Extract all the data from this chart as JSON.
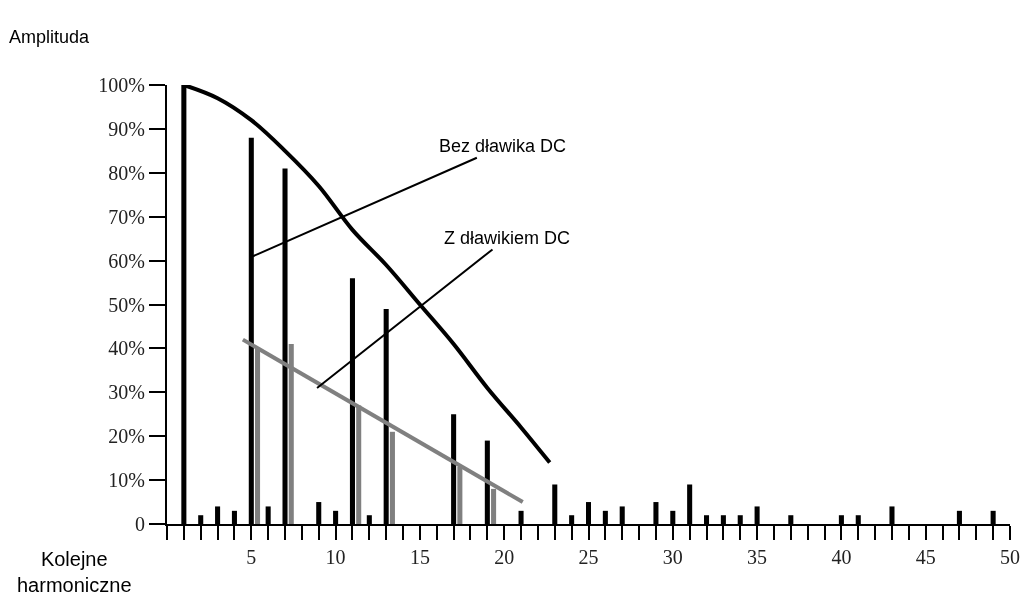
{
  "chart_data": {
    "type": "bar",
    "xlabel": "Kolejne harmoniczne",
    "ylabel": "Amplituda",
    "xlim": [
      0,
      50
    ],
    "xticks": [
      {
        "value": 0,
        "label": null
      },
      {
        "value": 1,
        "label": null
      },
      {
        "value": 2,
        "label": null
      },
      {
        "value": 3,
        "label": null
      },
      {
        "value": 4,
        "label": null
      },
      5,
      {
        "value": 6,
        "label": null
      },
      {
        "value": 7,
        "label": null
      },
      {
        "value": 8,
        "label": null
      },
      {
        "value": 9,
        "label": null
      },
      10,
      {
        "value": 11,
        "label": null
      },
      {
        "value": 12,
        "label": null
      },
      {
        "value": 13,
        "label": null
      },
      {
        "value": 14,
        "label": null
      },
      15,
      {
        "value": 16,
        "label": null
      },
      {
        "value": 17,
        "label": null
      },
      {
        "value": 18,
        "label": null
      },
      {
        "value": 19,
        "label": null
      },
      20,
      {
        "value": 21,
        "label": null
      },
      {
        "value": 22,
        "label": null
      },
      {
        "value": 23,
        "label": null
      },
      {
        "value": 24,
        "label": null
      },
      25,
      {
        "value": 26,
        "label": null
      },
      {
        "value": 27,
        "label": null
      },
      {
        "value": 28,
        "label": null
      },
      {
        "value": 29,
        "label": null
      },
      30,
      {
        "value": 31,
        "label": null
      },
      {
        "value": 32,
        "label": null
      },
      {
        "value": 33,
        "label": null
      },
      {
        "value": 34,
        "label": null
      },
      35,
      {
        "value": 36,
        "label": null
      },
      {
        "value": 37,
        "label": null
      },
      {
        "value": 38,
        "label": null
      },
      {
        "value": 39,
        "label": null
      },
      40,
      {
        "value": 41,
        "label": null
      },
      {
        "value": 42,
        "label": null
      },
      {
        "value": 43,
        "label": null
      },
      {
        "value": 44,
        "label": null
      },
      45,
      {
        "value": 46,
        "label": null
      },
      {
        "value": 47,
        "label": null
      },
      {
        "value": 48,
        "label": null
      },
      {
        "value": 49,
        "label": null
      },
      50
    ],
    "ylim": [
      0,
      100
    ],
    "yticks": [
      0,
      {
        "value": 10,
        "label": "10%"
      },
      {
        "value": 20,
        "label": "20%"
      },
      {
        "value": 30,
        "label": "30%"
      },
      {
        "value": 40,
        "label": "40%"
      },
      {
        "value": 50,
        "label": "50%"
      },
      {
        "value": 60,
        "label": "60%"
      },
      {
        "value": 70,
        "label": "70%"
      },
      {
        "value": 80,
        "label": "80%"
      },
      {
        "value": 90,
        "label": "90%"
      },
      {
        "value": 100,
        "label": "100%"
      }
    ],
    "series": [
      {
        "color": "#000000",
        "x": [
          1,
          2,
          3,
          4,
          5,
          6,
          7,
          9,
          10,
          11,
          12,
          13,
          17,
          19,
          21,
          23,
          24,
          25,
          26,
          27,
          29,
          30,
          31,
          32,
          33,
          34,
          35,
          37,
          40,
          41,
          43,
          47,
          49
        ],
        "values": [
          100,
          2,
          4,
          3,
          88,
          4,
          81,
          5,
          3,
          56,
          2,
          49,
          25,
          19,
          3,
          9,
          2,
          5,
          3,
          4,
          5,
          3,
          9,
          2,
          2,
          2,
          4,
          2,
          2,
          2,
          4,
          3,
          3
        ]
      },
      {
        "color": "#808080",
        "x": [
          5,
          7,
          11,
          13,
          17,
          19
        ],
        "values": [
          40,
          41,
          27,
          21,
          13,
          8
        ]
      },
      {
        "type": "line",
        "color": "#000000",
        "x": [
          1,
          3,
          5,
          7,
          9,
          11,
          13,
          15,
          17,
          19,
          21,
          22.7
        ],
        "values": [
          100,
          97,
          92,
          85,
          77,
          67,
          59,
          50,
          41,
          31,
          22,
          14
        ]
      },
      {
        "type": "line",
        "color": "#808080",
        "x": [
          4.5,
          21.1
        ],
        "values": [
          42,
          5
        ]
      }
    ],
    "annotations": [
      {
        "text": "Bez dławika DC",
        "x": 5.1,
        "y": 61
      },
      {
        "text": "Z dławikiem DC",
        "x": 8.9,
        "y": 31
      }
    ]
  }
}
